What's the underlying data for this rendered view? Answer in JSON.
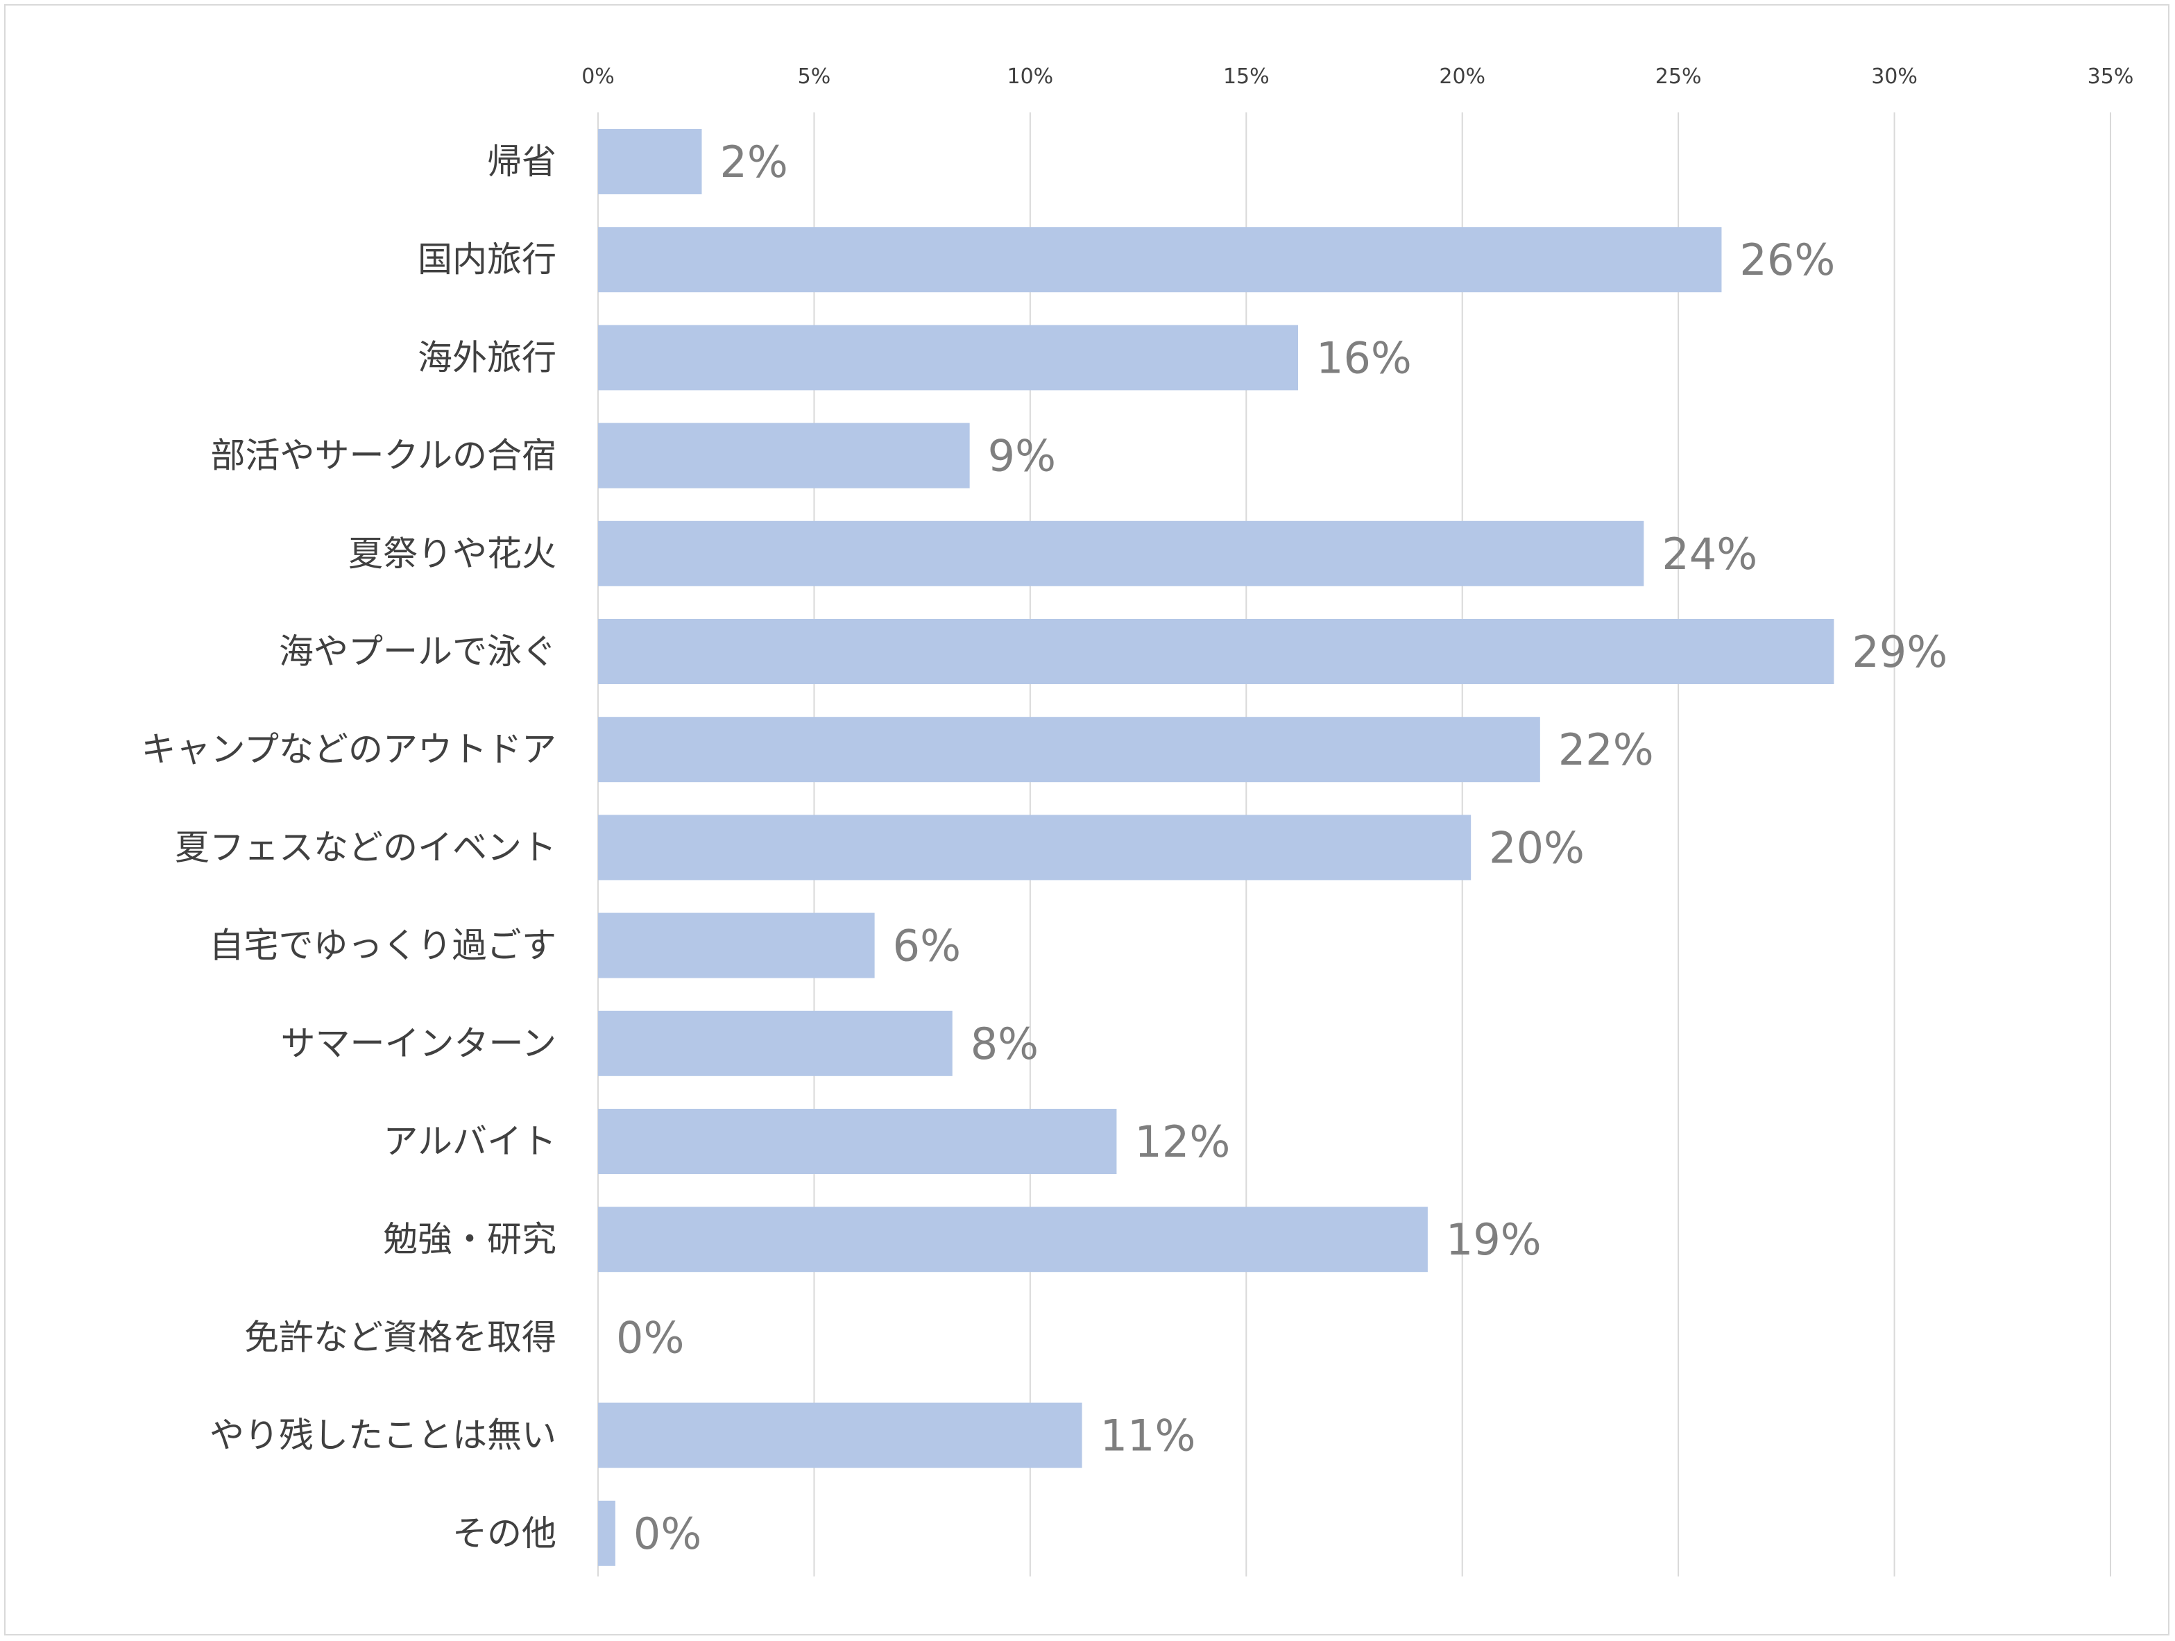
{
  "chart_data": {
    "type": "bar",
    "orientation": "horizontal",
    "categories": [
      "帰省",
      "国内旅行",
      "海外旅行",
      "部活やサークルの合宿",
      "夏祭りや花火",
      "海やプールで泳ぐ",
      "キャンプなどのアウトドア",
      "夏フェスなどのイベント",
      "自宅でゆっくり過ごす",
      "サマーインターン",
      "アルバイト",
      "勉強・研究",
      "免許など資格を取得",
      "やり残したことは無い",
      "その他"
    ],
    "values": [
      2.4,
      26.0,
      16.2,
      8.6,
      24.2,
      28.6,
      21.8,
      20.2,
      6.4,
      8.2,
      12.0,
      19.2,
      0,
      11.2,
      0.4
    ],
    "data_labels": [
      "2%",
      "26%",
      "16%",
      "9%",
      "24%",
      "29%",
      "22%",
      "20%",
      "6%",
      "8%",
      "12%",
      "19%",
      "0%",
      "11%",
      "0%"
    ],
    "x_ticks": [
      "0%",
      "5%",
      "10%",
      "15%",
      "20%",
      "25%",
      "30%",
      "35%"
    ],
    "xlim": [
      0,
      35
    ],
    "x_axis_position": "top",
    "grid": true,
    "legend": "none",
    "title": "",
    "xlabel": "",
    "ylabel": "",
    "colors": {
      "bar": "#b4c7e7",
      "grid": "#d9d9d9",
      "data_label": "#7f7f7f",
      "axis_text": "#404040"
    }
  }
}
